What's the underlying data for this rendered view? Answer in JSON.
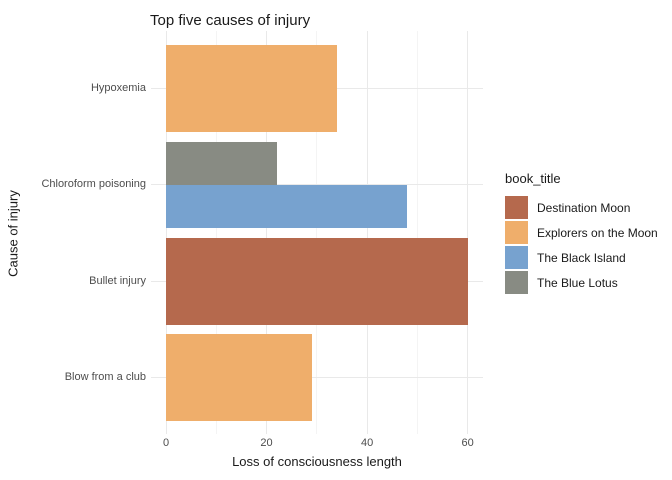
{
  "chart_data": {
    "type": "bar",
    "orientation": "horizontal",
    "title": "Top five causes of injury",
    "xlabel": "Loss of consciousness length",
    "ylabel": "Cause of injury",
    "grid": true,
    "legend_position": "right",
    "legend_title": "book_title",
    "categories": [
      "Hypoxemia",
      "Chloroform poisoning",
      "Bullet injury",
      "Blow from a club"
    ],
    "x_ticks": [
      0,
      20,
      40,
      60
    ],
    "x_minor_ticks": [
      10,
      30,
      50
    ],
    "xlim": [
      0,
      63
    ],
    "series": [
      {
        "name": "Destination Moon",
        "color": "#b5694d"
      },
      {
        "name": "Explorers on the Moon",
        "color": "#efae6b"
      },
      {
        "name": "The Black Island",
        "color": "#77a2cf"
      },
      {
        "name": "The Blue Lotus",
        "color": "#888b83"
      }
    ],
    "bars": [
      {
        "category": "Hypoxemia",
        "book_title": "Explorers on the Moon",
        "value": 34
      },
      {
        "category": "Chloroform poisoning",
        "book_title": "The Blue Lotus",
        "value": 22
      },
      {
        "category": "Chloroform poisoning",
        "book_title": "The Black Island",
        "value": 48
      },
      {
        "category": "Bullet injury",
        "book_title": "Destination Moon",
        "value": 60
      },
      {
        "category": "Blow from a club",
        "book_title": "Explorers on the Moon",
        "value": 29
      }
    ],
    "colors": {
      "grid_major": "#e9e9e9",
      "grid_minor": "#f4f4f4",
      "axis_text": "#4d4d4d",
      "text": "#1a1a1a",
      "background": "#ffffff"
    }
  }
}
